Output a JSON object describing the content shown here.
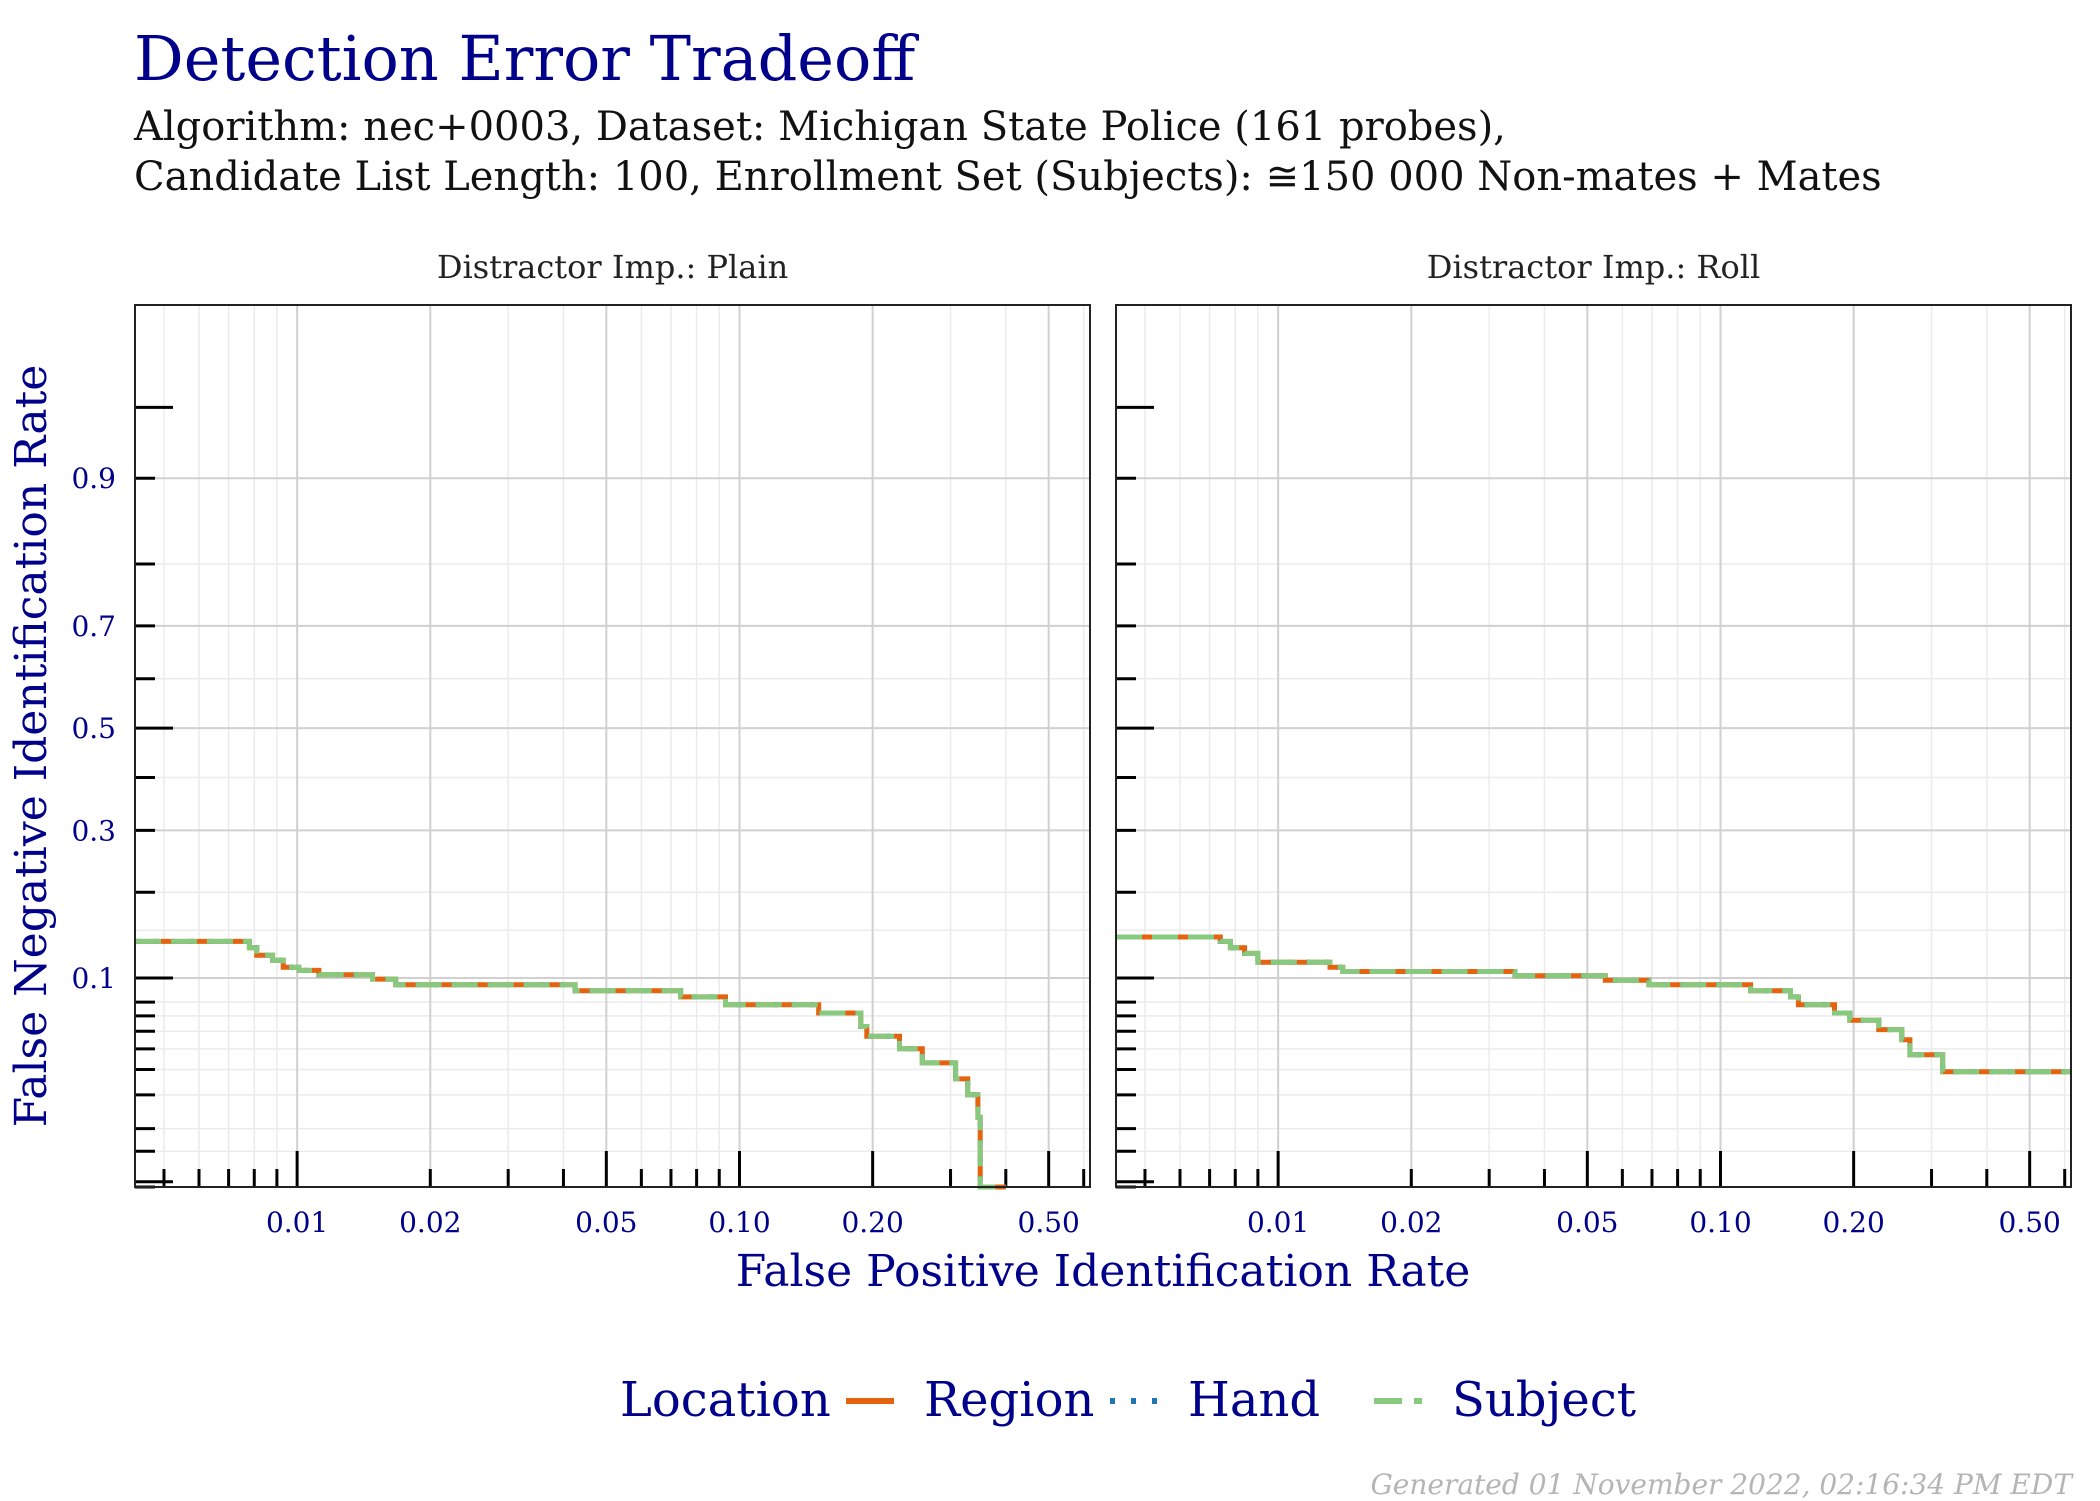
{
  "header": {
    "title": "Detection Error Tradeoff",
    "subtitle_line1": "Algorithm: nec+0003, Dataset: Michigan State Police (161 probes),",
    "subtitle_line2": "Candidate List Length: 100, Enrollment Set (Subjects): ≅150 000 Non-mates + Mates"
  },
  "footer": "Generated 01 November 2022, 02:16:34 PM EDT",
  "colors": {
    "title": "#00008b",
    "region": "#e5620f",
    "hand": "#1f78b4",
    "subject": "#86c97f",
    "grid_major": "#d0d0d0",
    "grid_minor": "#ebebeb"
  },
  "chart_data": {
    "type": "line",
    "xlabel": "False Positive Identification Rate",
    "ylabel": "False Negative Identification Rate",
    "xscale": "log",
    "yscale": "probit",
    "xlim": [
      0.0043,
      0.62
    ],
    "ylim": [
      0.0093,
      0.985
    ],
    "x_ticks": [
      0.01,
      0.02,
      0.05,
      0.1,
      0.2,
      0.5
    ],
    "x_tick_labels": [
      "0.01",
      "0.02",
      "0.05",
      "0.10",
      "0.20",
      "0.50"
    ],
    "y_ticks": [
      0.1,
      0.3,
      0.5,
      0.7,
      0.9
    ],
    "y_tick_labels": [
      "0.1",
      "0.3",
      "0.5",
      "0.7",
      "0.9"
    ],
    "legend": {
      "title": "Location",
      "position": "bottom",
      "entries": [
        "Region",
        "Hand",
        "Subject"
      ]
    },
    "facets": [
      {
        "name": "Distractor Imp.: Plain",
        "series": [
          {
            "name": "Subject",
            "x": [
              0.0043,
              0.0078,
              0.0081,
              0.0088,
              0.0093,
              0.0101,
              0.0112,
              0.0148,
              0.0167,
              0.0425,
              0.0736,
              0.093,
              0.151,
              0.188,
              0.194,
              0.23,
              0.259,
              0.308,
              0.328,
              0.346,
              0.35,
              0.4
            ],
            "y": [
              0.137,
              0.13,
              0.122,
              0.117,
              0.11,
              0.107,
              0.103,
              0.099,
              0.094,
              0.089,
              0.084,
              0.078,
              0.072,
              0.063,
              0.057,
              0.05,
              0.043,
              0.036,
              0.03,
              0.023,
              0.0093,
              0.0093
            ]
          }
        ]
      },
      {
        "name": "Distractor Imp.: Roll",
        "series": [
          {
            "name": "Subject",
            "x": [
              0.0043,
              0.0074,
              0.0078,
              0.0084,
              0.009,
              0.0131,
              0.014,
              0.0343,
              0.0549,
              0.0689,
              0.117,
              0.144,
              0.15,
              0.181,
              0.196,
              0.228,
              0.257,
              0.268,
              0.318,
              0.62
            ],
            "y": [
              0.142,
              0.137,
              0.13,
              0.124,
              0.115,
              0.11,
              0.106,
              0.102,
              0.098,
              0.094,
              0.089,
              0.084,
              0.078,
              0.072,
              0.067,
              0.061,
              0.055,
              0.047,
              0.039,
              0.039
            ]
          }
        ]
      }
    ]
  }
}
